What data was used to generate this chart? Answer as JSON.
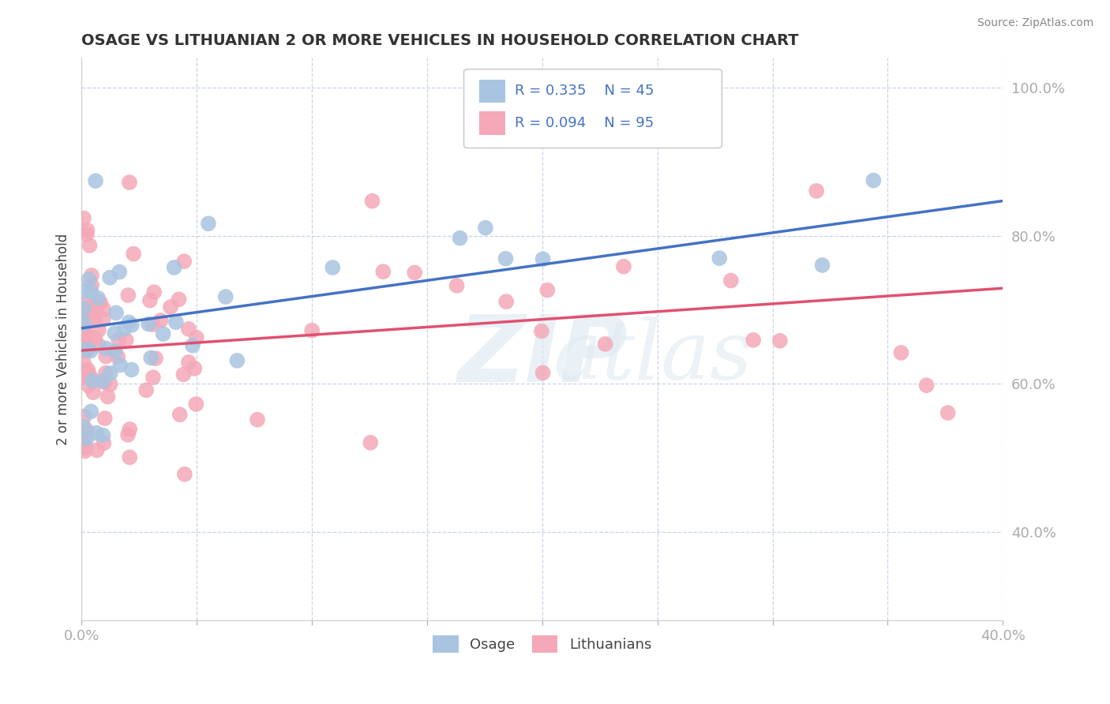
{
  "title": "OSAGE VS LITHUANIAN 2 OR MORE VEHICLES IN HOUSEHOLD CORRELATION CHART",
  "source": "Source: ZipAtlas.com",
  "ylabel": "2 or more Vehicles in Household",
  "xlim": [
    0.0,
    0.4
  ],
  "ylim": [
    0.28,
    1.04
  ],
  "xticks": [
    0.0,
    0.05,
    0.1,
    0.15,
    0.2,
    0.25,
    0.3,
    0.35,
    0.4
  ],
  "xticklabels": [
    "0.0%",
    "",
    "",
    "",
    "",
    "",
    "",
    "",
    "40.0%"
  ],
  "yticks": [
    0.4,
    0.6,
    0.8,
    1.0
  ],
  "yticklabels": [
    "40.0%",
    "60.0%",
    "80.0%",
    "100.0%"
  ],
  "osage_color": "#a8c4e0",
  "lithuanian_color": "#f4a8b8",
  "osage_line_color": "#4472c4",
  "lithuanian_line_color": "#e05070",
  "background_color": "#ffffff",
  "grid_color": "#c8d4e8",
  "osage_intercept": 0.675,
  "osage_slope": 0.43,
  "lith_intercept": 0.645,
  "lith_slope": 0.21,
  "seed": 77
}
